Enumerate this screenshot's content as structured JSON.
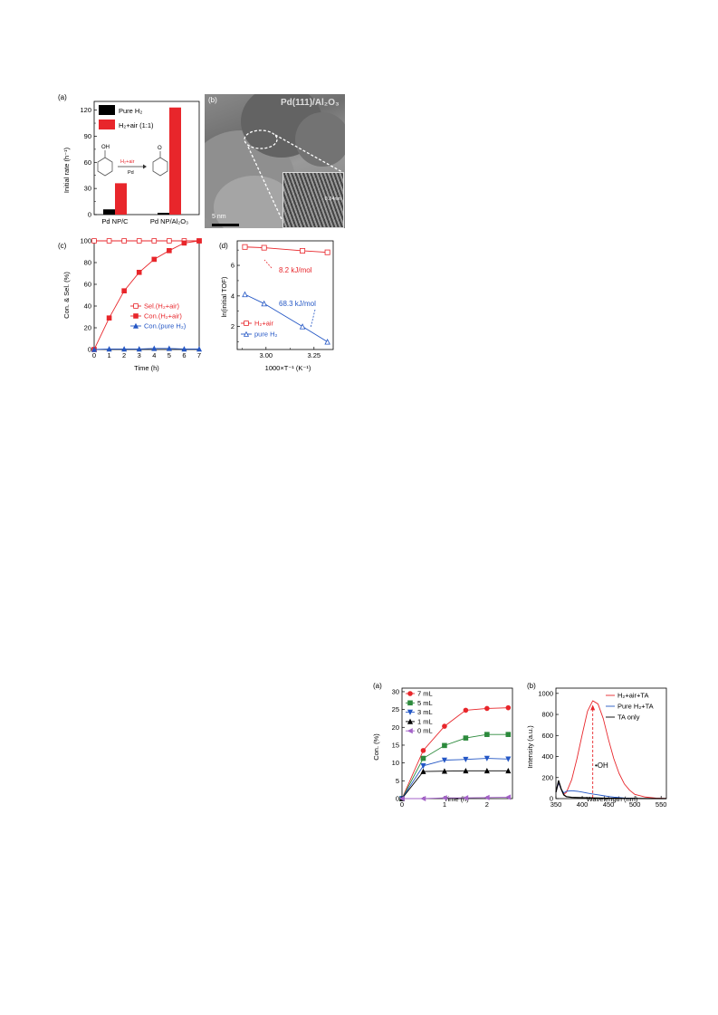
{
  "panel_a": {
    "label": "(a)",
    "legend": [
      "Pure H₂",
      "H₂+air (1:1)"
    ],
    "scheme": {
      "reactant": "OH",
      "reagent": "H₂+air",
      "catalyst": "Pd",
      "product": "O"
    }
  },
  "panel_b": {
    "label": "(b)",
    "title": "Pd(111)/Al₂O₃",
    "scalebar": "5 nm",
    "lattice": "0.24nm"
  },
  "panel_c": {
    "label": "(c)"
  },
  "panel_d": {
    "label": "(d)",
    "annot_air": "8.2 kJ/mol",
    "annot_h2": "68.3 kJ/mol"
  },
  "panel_e": {
    "label": "(a)"
  },
  "panel_f": {
    "label": "(b)",
    "annot": "•OH"
  },
  "colors": {
    "red": "#e8262b",
    "blue": "#2457c5",
    "green": "#2c8a3c",
    "purple": "#a463c8",
    "black": "#000000"
  },
  "chart_data": [
    {
      "type": "bar",
      "categories": [
        "Pd NP/C",
        "Pd NP/Al₂O₃"
      ],
      "series": [
        {
          "name": "Pure H₂",
          "values": [
            6,
            2
          ],
          "color": "#000000"
        },
        {
          "name": "H₂+air (1:1)",
          "values": [
            36,
            123
          ],
          "color": "#e8262b"
        }
      ],
      "ylabel": "Initial rate (h⁻¹)",
      "ylim": [
        0,
        130
      ],
      "yticks": [
        0,
        30,
        60,
        90,
        120
      ]
    },
    {
      "type": "line",
      "x": [
        0,
        1,
        2,
        3,
        4,
        5,
        6,
        7
      ],
      "series": [
        {
          "name": "Sel.(H₂+air)",
          "values": [
            100,
            100,
            100,
            100,
            100,
            100,
            100,
            100
          ],
          "color": "#e8262b",
          "marker": "square-open"
        },
        {
          "name": "Con.(H₂+air)",
          "values": [
            0,
            29,
            54,
            71,
            83,
            91,
            98,
            100
          ],
          "color": "#e8262b",
          "marker": "square"
        },
        {
          "name": "Con.(pure H₂)",
          "values": [
            0,
            0.5,
            0.5,
            0.5,
            1,
            1,
            0.5,
            0.5
          ],
          "color": "#2457c5",
          "marker": "triangle"
        }
      ],
      "xlabel": "Time (h)",
      "ylabel": "Con. & Sel. (%)",
      "xlim": [
        0,
        7
      ],
      "ylim": [
        0,
        100
      ],
      "xticks": [
        0,
        1,
        2,
        3,
        4,
        5,
        6,
        7
      ],
      "yticks": [
        0,
        20,
        40,
        60,
        80,
        100
      ]
    },
    {
      "type": "line",
      "series": [
        {
          "name": "H₂+air",
          "x": [
            2.89,
            2.99,
            3.19,
            3.32
          ],
          "values": [
            7.2,
            7.15,
            6.95,
            6.85
          ],
          "color": "#e8262b",
          "marker": "square-open"
        },
        {
          "name": "pure H₂",
          "x": [
            2.89,
            2.99,
            3.19,
            3.32
          ],
          "values": [
            4.1,
            3.5,
            2.0,
            1.0
          ],
          "color": "#2457c5",
          "marker": "triangle-open"
        }
      ],
      "xlabel": "1000×T⁻¹ (K⁻¹)",
      "ylabel": "ln(initial TOF)",
      "xlim": [
        2.85,
        3.35
      ],
      "ylim": [
        0.5,
        7.6
      ],
      "xticks": [
        3.0,
        3.25
      ],
      "yticks": [
        2,
        4,
        6
      ]
    },
    {
      "type": "line",
      "x": [
        0,
        0.5,
        1,
        1.5,
        2,
        2.5
      ],
      "series": [
        {
          "name": "7 mL",
          "values": [
            0,
            13.5,
            20.3,
            24.8,
            25.3,
            25.5
          ],
          "color": "#e8262b",
          "marker": "circle"
        },
        {
          "name": "5 mL",
          "values": [
            0,
            11.3,
            14.9,
            17.0,
            18.0,
            18.0
          ],
          "color": "#2c8a3c",
          "marker": "square"
        },
        {
          "name": "3 mL",
          "values": [
            0,
            9.2,
            10.8,
            11.0,
            11.3,
            11.1
          ],
          "color": "#2457c5",
          "marker": "triangle-down"
        },
        {
          "name": "1 mL",
          "values": [
            0,
            7.6,
            7.7,
            7.8,
            7.8,
            7.8
          ],
          "color": "#000000",
          "marker": "triangle"
        },
        {
          "name": "0 mL",
          "values": [
            0,
            0,
            0.2,
            0.2,
            0.3,
            0.4
          ],
          "color": "#a463c8",
          "marker": "triangle-left"
        }
      ],
      "xlabel": "Time (h)",
      "ylabel": "Con. (%)",
      "xlim": [
        0,
        2.6
      ],
      "ylim": [
        0,
        31
      ],
      "xticks": [
        0,
        1,
        2
      ],
      "yticks": [
        0,
        5,
        10,
        15,
        20,
        25,
        30
      ]
    },
    {
      "type": "line",
      "series": [
        {
          "name": "H₂+air+TA",
          "color": "#e8262b",
          "x": [
            350,
            355,
            360,
            365,
            370,
            380,
            390,
            400,
            410,
            420,
            430,
            440,
            450,
            460,
            470,
            480,
            490,
            500,
            520,
            540,
            560
          ],
          "values": [
            60,
            150,
            90,
            40,
            60,
            180,
            380,
            610,
            830,
            930,
            900,
            760,
            560,
            380,
            240,
            140,
            80,
            40,
            15,
            5,
            2
          ]
        },
        {
          "name": "Pure H₂+TA",
          "color": "#2457c5",
          "x": [
            350,
            355,
            360,
            365,
            370,
            380,
            390,
            400,
            410,
            420,
            430,
            440,
            450,
            460,
            480,
            500,
            560
          ],
          "values": [
            60,
            150,
            90,
            55,
            70,
            75,
            70,
            62,
            52,
            44,
            36,
            28,
            20,
            14,
            6,
            2,
            0
          ]
        },
        {
          "name": "TA only",
          "color": "#000000",
          "x": [
            350,
            355,
            360,
            365,
            370,
            380,
            400,
            420,
            440,
            460,
            500,
            560
          ],
          "values": [
            60,
            170,
            90,
            35,
            18,
            12,
            8,
            6,
            4,
            3,
            1,
            0
          ]
        }
      ],
      "xlabel": "Wavelength (nm)",
      "ylabel": "Intensity (a.u.)",
      "xlim": [
        350,
        560
      ],
      "ylim": [
        0,
        1050
      ],
      "xticks": [
        350,
        400,
        450,
        500,
        550
      ],
      "yticks": [
        0,
        200,
        400,
        600,
        800,
        1000
      ]
    }
  ]
}
